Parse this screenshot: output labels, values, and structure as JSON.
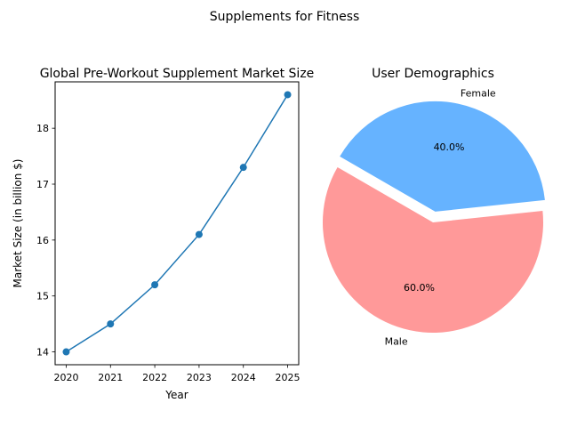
{
  "figure": {
    "suptitle": "Supplements for Fitness"
  },
  "chart_data": [
    {
      "type": "line",
      "title": "Global Pre-Workout Supplement Market Size",
      "xlabel": "Year",
      "ylabel": "Market Size (in billion $)",
      "x": [
        2020,
        2021,
        2022,
        2023,
        2024,
        2025
      ],
      "x_tick_labels": [
        "2020",
        "2021",
        "2022",
        "2023",
        "2024",
        "2025"
      ],
      "series": [
        {
          "values": [
            14.0,
            14.5,
            15.2,
            16.1,
            17.3,
            18.6
          ],
          "color": "#1f77b4",
          "marker": "circle"
        }
      ],
      "y_ticks": [
        14,
        15,
        16,
        17,
        18
      ],
      "y_tick_labels": [
        "14",
        "15",
        "16",
        "17",
        "18"
      ],
      "xlim": [
        2019.75,
        2025.25
      ],
      "ylim": [
        13.77,
        18.83
      ],
      "grid": false
    },
    {
      "type": "pie",
      "title": "User Demographics",
      "labels": [
        "Male",
        "Female"
      ],
      "values": [
        60,
        40
      ],
      "percent_labels": [
        "60.0%",
        "40.0%"
      ],
      "colors": [
        "#ff9999",
        "#66b3ff"
      ],
      "explode": [
        0,
        0.1
      ],
      "start_angle_deg": 150
    }
  ]
}
